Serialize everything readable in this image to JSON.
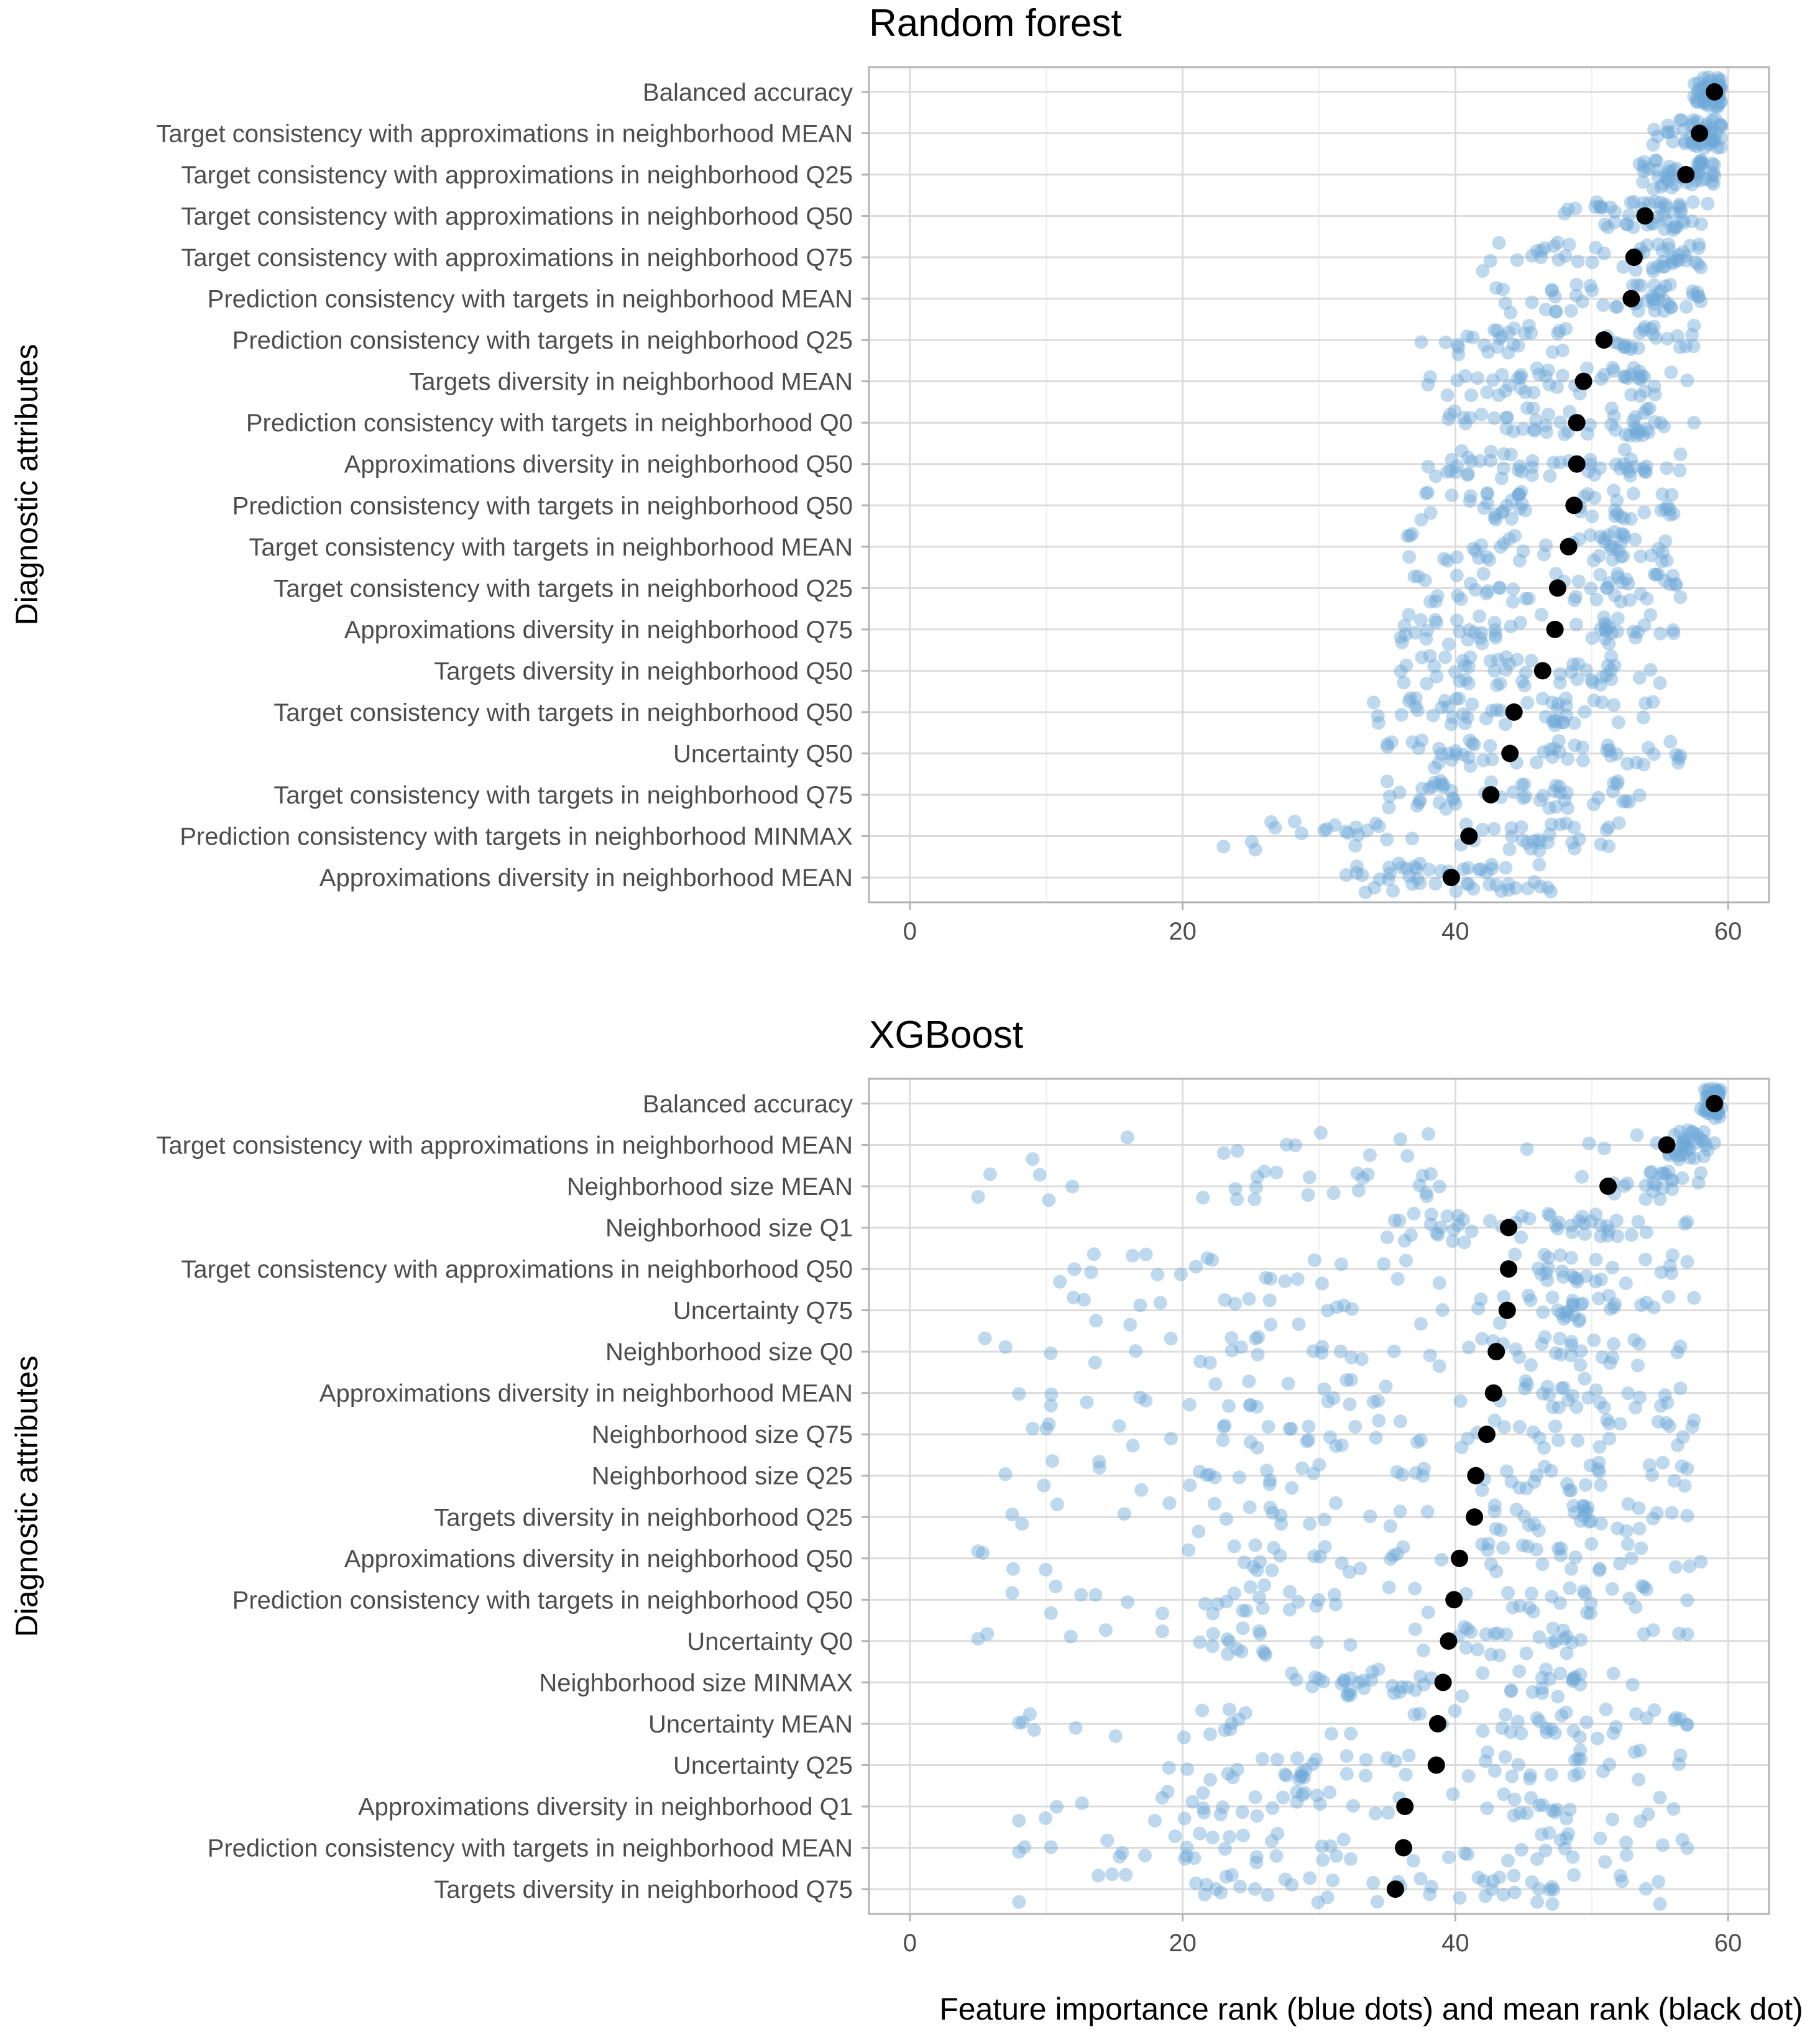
{
  "colors": {
    "blue_dot": "#6fa8d6",
    "mean_dot": "#000000",
    "grid": "#dcdcdc",
    "border": "#b3b3b3",
    "label": "#4d4d4d"
  },
  "shared": {
    "ylabel": "Diagnostic attributes",
    "xlabel": "Feature importance rank (blue dots) and mean rank (black dot)",
    "xlim": [
      -3,
      63
    ],
    "xticks": [
      0,
      20,
      40,
      60
    ],
    "xtick_labels": [
      "0",
      "20",
      "40",
      "60"
    ]
  },
  "chart_data": [
    {
      "type": "scatter",
      "title": "Random forest",
      "xlabel": "",
      "ylabel": "Diagnostic attributes",
      "xlim": [
        -3,
        63
      ],
      "categories": [
        "Balanced accuracy",
        "Target consistency with approximations in neighborhood MEAN",
        "Target consistency with approximations in neighborhood Q25",
        "Target consistency with approximations in neighborhood Q50",
        "Target consistency with approximations in neighborhood Q75",
        "Prediction consistency with targets in neighborhood MEAN",
        "Prediction consistency with targets in neighborhood Q25",
        "Targets diversity in neighborhood MEAN",
        "Prediction consistency with targets in neighborhood Q0",
        "Approximations diversity in neighborhood Q50",
        "Prediction consistency with targets in neighborhood Q50",
        "Target consistency with targets in neighborhood MEAN",
        "Target consistency with targets in neighborhood Q25",
        "Approximations diversity in neighborhood Q75",
        "Targets diversity in neighborhood Q50",
        "Target consistency with targets in neighborhood Q50",
        "Uncertainty Q50",
        "Target consistency with targets in neighborhood Q75",
        "Prediction consistency with targets in neighborhood MINMAX",
        "Approximations diversity in neighborhood MEAN"
      ],
      "means": [
        59.0,
        57.9,
        56.9,
        53.9,
        53.1,
        52.9,
        50.9,
        49.4,
        48.9,
        48.9,
        48.7,
        48.3,
        47.5,
        47.3,
        46.4,
        44.3,
        44.0,
        42.6,
        41.0,
        39.7
      ],
      "distributions": [
        {
          "min": 57.5,
          "max": 59.5
        },
        {
          "min": 54.5,
          "max": 59.5
        },
        {
          "min": 53.5,
          "max": 59.0
        },
        {
          "min": 48.0,
          "max": 58.5
        },
        {
          "min": 42.0,
          "max": 58.0
        },
        {
          "min": 43.0,
          "max": 58.0
        },
        {
          "min": 37.5,
          "max": 57.5
        },
        {
          "min": 38.0,
          "max": 57.0
        },
        {
          "min": 39.5,
          "max": 57.5
        },
        {
          "min": 38.0,
          "max": 56.5
        },
        {
          "min": 37.5,
          "max": 56.0
        },
        {
          "min": 36.5,
          "max": 55.5
        },
        {
          "min": 37.0,
          "max": 56.5
        },
        {
          "min": 36.0,
          "max": 56.0
        },
        {
          "min": 36.0,
          "max": 55.0
        },
        {
          "min": 34.0,
          "max": 54.5
        },
        {
          "min": 35.0,
          "max": 56.5
        },
        {
          "min": 35.0,
          "max": 53.5
        },
        {
          "min": 23.0,
          "max": 52.0
        },
        {
          "min": 32.0,
          "max": 47.0
        }
      ]
    },
    {
      "type": "scatter",
      "title": "XGBoost",
      "xlabel": "Feature importance rank (blue dots) and mean rank (black dot)",
      "ylabel": "Diagnostic attributes",
      "xlim": [
        -3,
        63
      ],
      "categories": [
        "Balanced accuracy",
        "Target consistency with approximations in neighborhood MEAN",
        "Neighborhood size MEAN",
        "Neighborhood size Q1",
        "Target consistency with approximations in neighborhood Q50",
        "Uncertainty Q75",
        "Neighborhood size Q0",
        "Approximations diversity in neighborhood MEAN",
        "Neighborhood size Q75",
        "Neighborhood size Q25",
        "Targets diversity in neighborhood Q25",
        "Approximations diversity in neighborhood Q50",
        "Prediction consistency with targets in neighborhood Q50",
        "Uncertainty Q0",
        "Neighborhood size MINMAX",
        "Uncertainty MEAN",
        "Uncertainty Q25",
        "Approximations diversity in neighborhood Q1",
        "Prediction consistency with targets in neighborhood MEAN",
        "Targets diversity in neighborhood Q75"
      ],
      "means": [
        59.0,
        55.5,
        51.2,
        43.9,
        43.9,
        43.8,
        43.0,
        42.8,
        42.3,
        41.5,
        41.4,
        40.3,
        39.9,
        39.5,
        39.1,
        38.7,
        38.6,
        36.3,
        36.2,
        35.6
      ],
      "distributions": [
        {
          "min": 58.0,
          "max": 59.5
        },
        {
          "min": 9.0,
          "max": 59.0
        },
        {
          "min": 5.0,
          "max": 58.0
        },
        {
          "min": 35.0,
          "max": 57.0
        },
        {
          "min": 11.0,
          "max": 57.0
        },
        {
          "min": 12.0,
          "max": 57.5
        },
        {
          "min": 5.5,
          "max": 56.5
        },
        {
          "min": 8.0,
          "max": 56.5
        },
        {
          "min": 9.0,
          "max": 57.5
        },
        {
          "min": 7.0,
          "max": 57.0
        },
        {
          "min": 7.5,
          "max": 57.0
        },
        {
          "min": 5.0,
          "max": 58.0
        },
        {
          "min": 7.5,
          "max": 57.0
        },
        {
          "min": 5.0,
          "max": 57.0
        },
        {
          "min": 28.0,
          "max": 53.0
        },
        {
          "min": 8.0,
          "max": 57.0
        },
        {
          "min": 19.0,
          "max": 56.5
        },
        {
          "min": 8.0,
          "max": 56.0
        },
        {
          "min": 8.0,
          "max": 57.0
        },
        {
          "min": 8.0,
          "max": 55.0
        }
      ]
    }
  ]
}
